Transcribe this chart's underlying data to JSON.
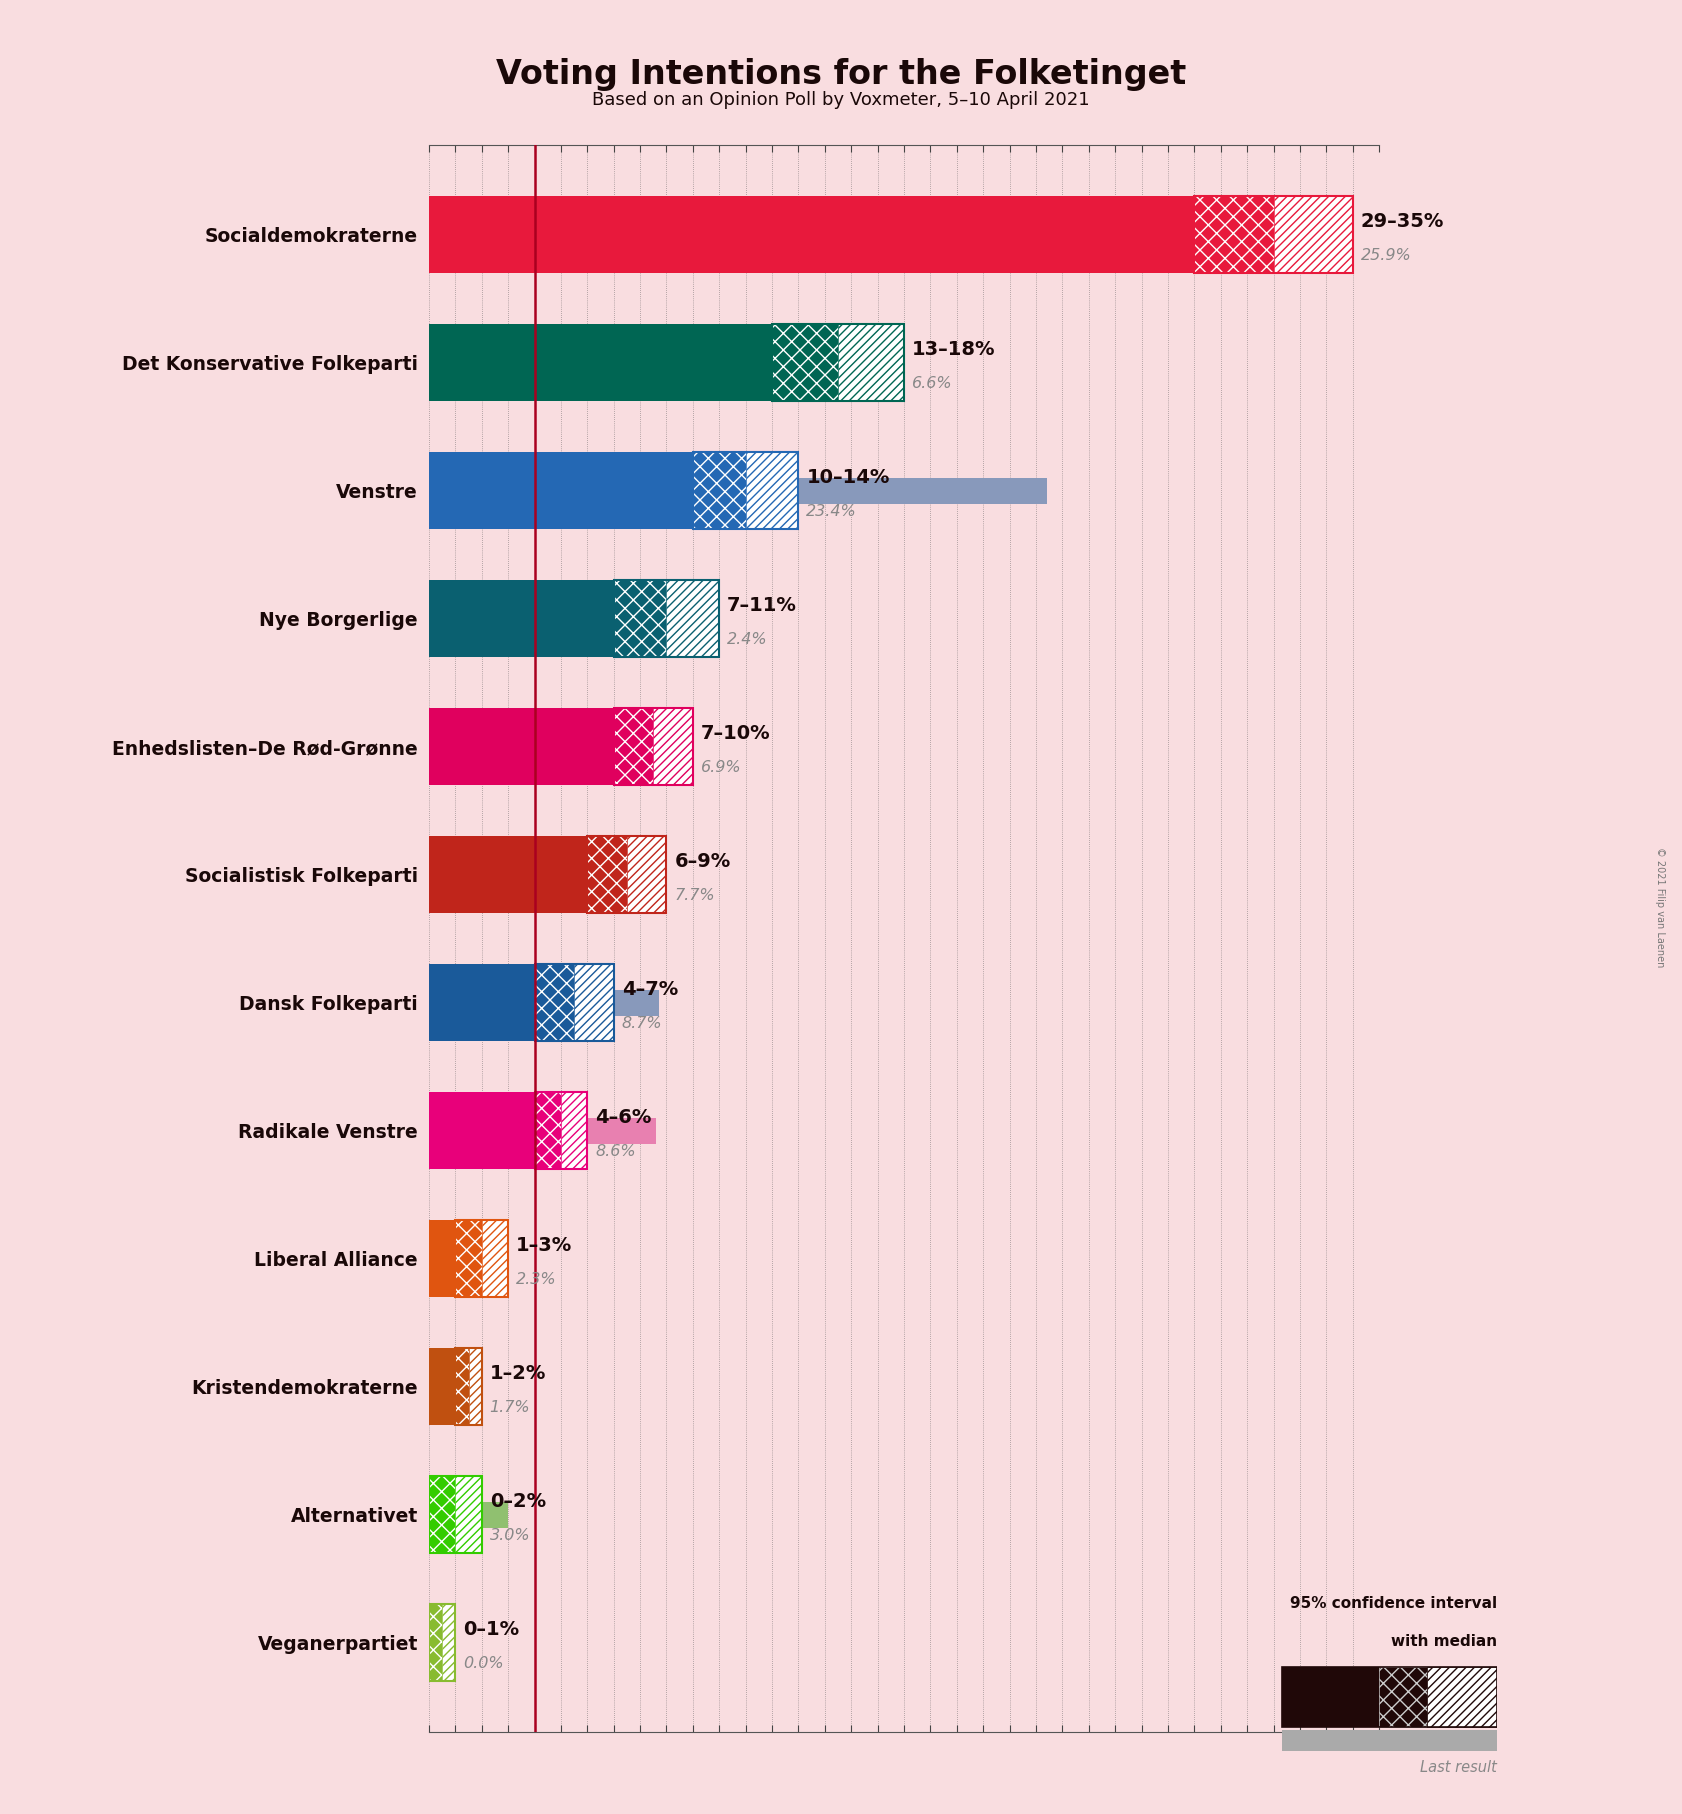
{
  "title": "Voting Intentions for the Folketinget",
  "subtitle": "Based on an Opinion Poll by Voxmeter, 5–10 April 2021",
  "background_color": "#f9dde0",
  "parties": [
    {
      "name": "Socialdemokraterne",
      "median": 32.0,
      "ci_low": 29.0,
      "ci_high": 35.0,
      "last_result": 25.9,
      "color": "#e8193c",
      "last_color": "#e8a0b0",
      "label": "29–35%",
      "last_label": "25.9%"
    },
    {
      "name": "Det Konservative Folkeparti",
      "median": 15.5,
      "ci_low": 13.0,
      "ci_high": 18.0,
      "last_result": 6.6,
      "color": "#006653",
      "last_color": "#999999",
      "label": "13–18%",
      "last_label": "6.6%"
    },
    {
      "name": "Venstre",
      "median": 12.0,
      "ci_low": 10.0,
      "ci_high": 14.0,
      "last_result": 23.4,
      "color": "#2468b4",
      "last_color": "#8899bb",
      "label": "10–14%",
      "last_label": "23.4%"
    },
    {
      "name": "Nye Borgerlige",
      "median": 9.0,
      "ci_low": 7.0,
      "ci_high": 11.0,
      "last_result": 2.4,
      "color": "#0a6070",
      "last_color": "#999999",
      "label": "7–11%",
      "last_label": "2.4%"
    },
    {
      "name": "Enhedslisten–De Rød-Grønne",
      "median": 8.5,
      "ci_low": 7.0,
      "ci_high": 10.0,
      "last_result": 6.9,
      "color": "#e0005e",
      "last_color": "#e080a0",
      "label": "7–10%",
      "last_label": "6.9%"
    },
    {
      "name": "Socialistisk Folkeparti",
      "median": 7.5,
      "ci_low": 6.0,
      "ci_high": 9.0,
      "last_result": 7.7,
      "color": "#c0251b",
      "last_color": "#c08080",
      "label": "6–9%",
      "last_label": "7.7%"
    },
    {
      "name": "Dansk Folkeparti",
      "median": 5.5,
      "ci_low": 4.0,
      "ci_high": 7.0,
      "last_result": 8.7,
      "color": "#1a5a9a",
      "last_color": "#8899bb",
      "label": "4–7%",
      "last_label": "8.7%"
    },
    {
      "name": "Radikale Venstre",
      "median": 5.0,
      "ci_low": 4.0,
      "ci_high": 6.0,
      "last_result": 8.6,
      "color": "#e8007a",
      "last_color": "#e880b0",
      "label": "4–6%",
      "last_label": "8.6%"
    },
    {
      "name": "Liberal Alliance",
      "median": 2.0,
      "ci_low": 1.0,
      "ci_high": 3.0,
      "last_result": 2.3,
      "color": "#e05510",
      "last_color": "#e0a070",
      "label": "1–3%",
      "last_label": "2.3%"
    },
    {
      "name": "Kristendemokraterne",
      "median": 1.5,
      "ci_low": 1.0,
      "ci_high": 2.0,
      "last_result": 1.7,
      "color": "#c05010",
      "last_color": "#c09060",
      "label": "1–2%",
      "last_label": "1.7%"
    },
    {
      "name": "Alternativet",
      "median": 1.0,
      "ci_low": 0.0,
      "ci_high": 2.0,
      "last_result": 3.0,
      "color": "#33cc00",
      "last_color": "#90c070",
      "label": "0–2%",
      "last_label": "3.0%"
    },
    {
      "name": "Veganerpartiet",
      "median": 0.5,
      "ci_low": 0.0,
      "ci_high": 1.0,
      "last_result": 0.0,
      "color": "#88bb30",
      "last_color": "#999999",
      "label": "0–1%",
      "last_label": "0.0%"
    }
  ],
  "red_line_x": 4.0,
  "xlim": [
    0,
    36
  ],
  "bar_height": 0.6,
  "gray_bar_height": 0.2,
  "last_result_gray": "#aaaaaa",
  "copyright_text": "© 2021 Filip van Laenen"
}
